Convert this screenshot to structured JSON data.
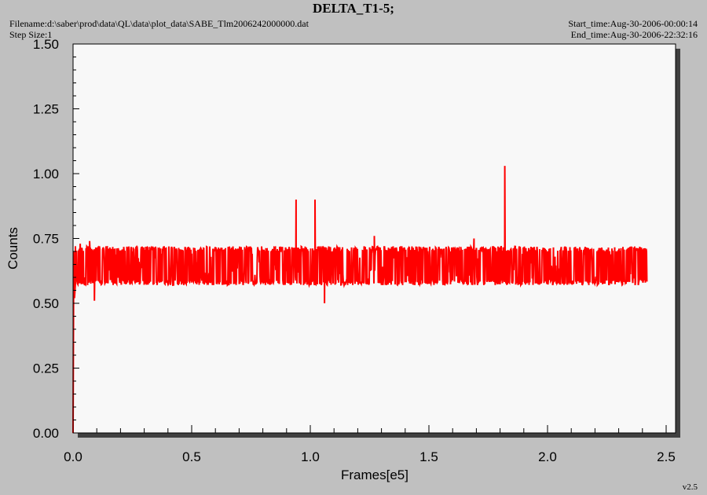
{
  "header": {
    "title": "DELTA_T1-5;",
    "filename": "Filename:d:\\saber\\prod\\data\\QL\\data\\plot_data\\SABE_Tlm2006242000000.dat",
    "step_size": "Step Size:1",
    "start_time": "Start_time:Aug-30-2006-00:00:14",
    "end_time": "End_time:Aug-30-2006-22:32:16"
  },
  "footer": {
    "version": "v2.5"
  },
  "colors": {
    "series": "#ff0000",
    "plot_bg": "#f8f8f8",
    "page_bg": "#c0c0c0",
    "shadow": "#404040"
  },
  "chart_data": {
    "type": "line",
    "title": "DELTA_T1-5;",
    "xlabel": "Frames[e5]",
    "ylabel": "Counts",
    "xlim": [
      0,
      2.5
    ],
    "ylim": [
      0,
      1.5
    ],
    "xticks": [
      "0.0",
      "0.5",
      "1.0",
      "1.5",
      "2.0",
      "2.5"
    ],
    "yticks": [
      "0.00",
      "0.25",
      "0.50",
      "0.75",
      "1.00",
      "1.25",
      "1.50"
    ],
    "grid": false,
    "series": [
      {
        "color": "#ff0000",
        "noise_band": {
          "x_start": 0.01,
          "x_end": 2.42,
          "lower": 0.57,
          "upper": 0.72,
          "center": 0.645
        },
        "points": [
          [
            0.0,
            0.0
          ],
          [
            0.003,
            0.7
          ],
          [
            0.006,
            0.52
          ],
          [
            0.01,
            0.72
          ],
          [
            0.02,
            0.58
          ],
          [
            0.03,
            0.73
          ],
          [
            0.05,
            0.6
          ],
          [
            0.07,
            0.74
          ],
          [
            0.09,
            0.51
          ],
          [
            0.1,
            0.7
          ],
          [
            0.94,
            0.9
          ],
          [
            1.02,
            0.9
          ],
          [
            1.06,
            0.5
          ],
          [
            1.27,
            0.76
          ],
          [
            1.69,
            0.75
          ],
          [
            1.82,
            1.03
          ],
          [
            2.42,
            0.64
          ]
        ]
      }
    ]
  }
}
